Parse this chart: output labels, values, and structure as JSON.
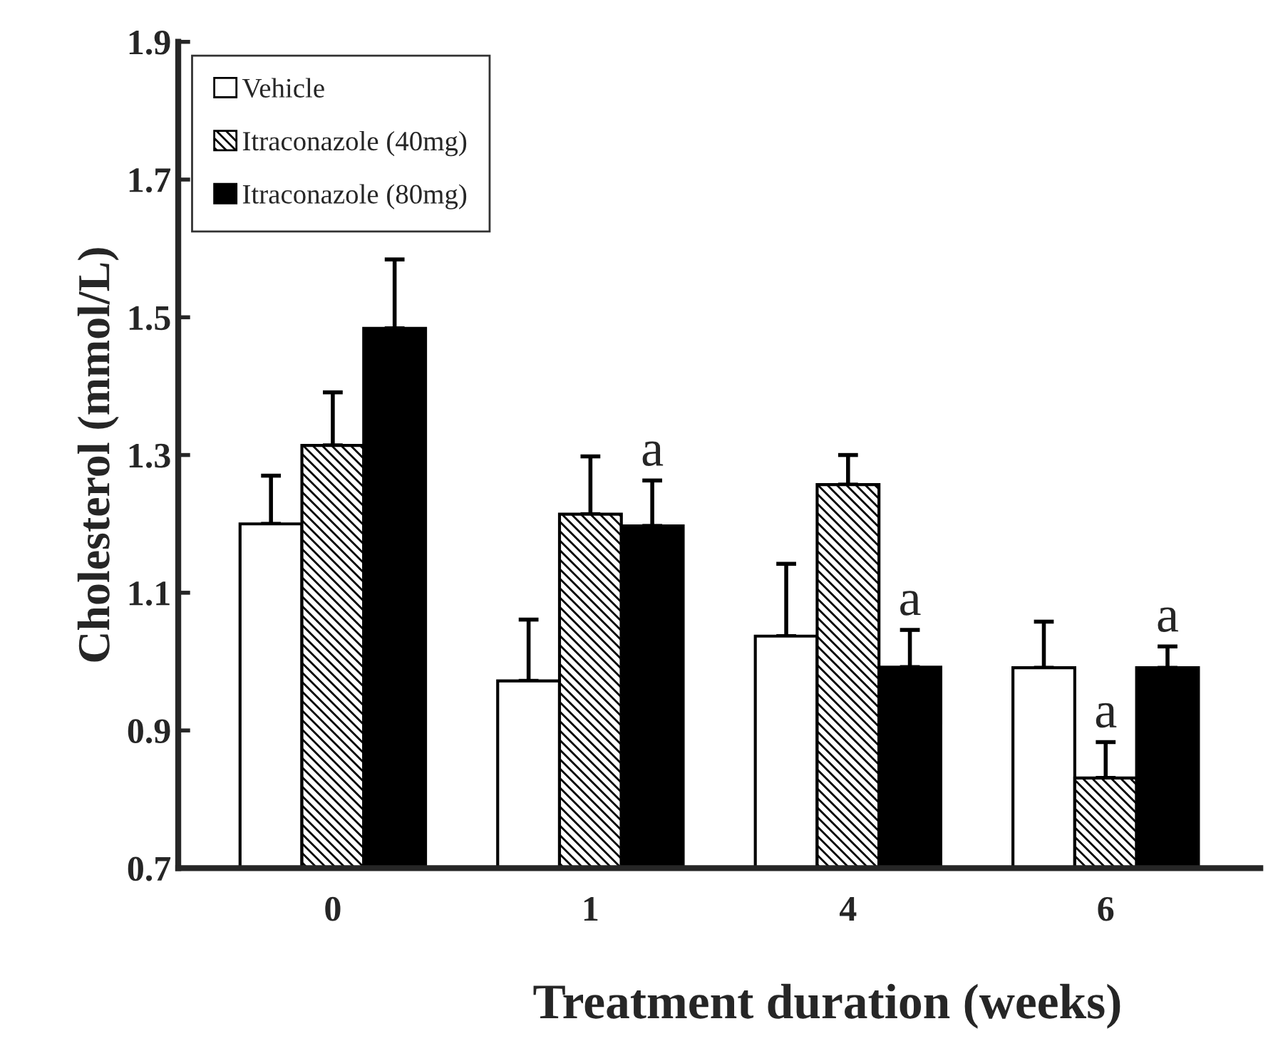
{
  "chart_data": {
    "type": "bar",
    "xlabel": "Treatment duration (weeks)",
    "ylabel": "Cholesterol (mmol/L)",
    "categories": [
      "0",
      "1",
      "4",
      "6"
    ],
    "series": [
      {
        "name": "Vehicle",
        "color": "#ffffff",
        "values": [
          1.2,
          0.972,
          1.037,
          0.991
        ],
        "errors": [
          [
            1.2,
            1.27
          ],
          [
            0.972,
            1.061
          ],
          [
            1.037,
            1.142
          ],
          [
            0.991,
            1.058
          ]
        ]
      },
      {
        "name": "Itraconazole (40mg)",
        "color": "#000000",
        "values": [
          1.314,
          1.214,
          1.257,
          0.831
        ],
        "errors": [
          [
            1.314,
            1.391
          ],
          [
            1.214,
            1.298
          ],
          [
            1.257,
            1.3
          ],
          [
            0.831,
            0.883
          ]
        ],
        "value_labels": [
          null,
          null,
          null,
          "a"
        ]
      },
      {
        "name": "Itraconazole (80mg)",
        "color": "#000000",
        "values": [
          1.484,
          1.197,
          0.992,
          0.991
        ],
        "errors": [
          [
            1.484,
            1.584
          ],
          [
            1.197,
            1.263
          ],
          [
            0.992,
            1.046
          ],
          [
            0.991,
            1.022
          ]
        ],
        "value_labels": [
          null,
          "a",
          "a",
          "a"
        ]
      }
    ],
    "ylim": [
      0.7,
      1.9
    ],
    "yticks": [
      0.7,
      0.9,
      1.1,
      1.3,
      1.5,
      1.7,
      1.9
    ],
    "grid": false,
    "legend": "top left"
  }
}
